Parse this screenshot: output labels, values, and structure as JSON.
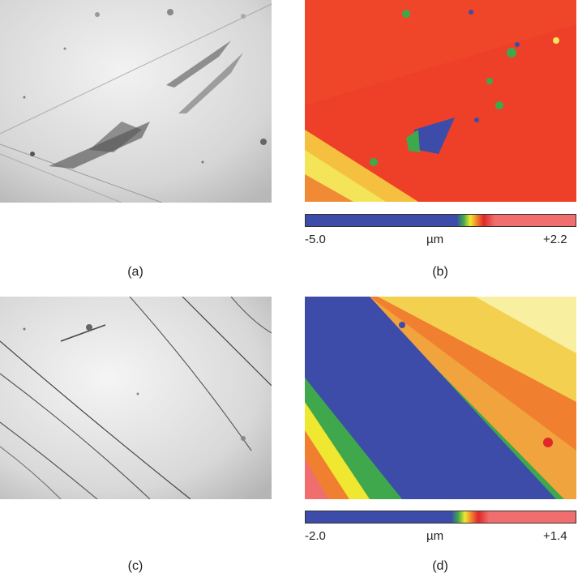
{
  "panels": [
    {
      "id": "a",
      "caption": "(a)",
      "kind": "optical micrograph (grayscale)"
    },
    {
      "id": "b",
      "caption": "(b)",
      "kind": "height map (false color)"
    },
    {
      "id": "c",
      "caption": "(c)",
      "kind": "optical micrograph (grayscale)"
    },
    {
      "id": "d",
      "caption": "(d)",
      "kind": "height map (false color)"
    }
  ],
  "colorbars": [
    {
      "panel": "b",
      "min_label": "-5.0",
      "unit": "µm",
      "max_label": "+2.2"
    },
    {
      "panel": "d",
      "min_label": "-2.0",
      "unit": "µm",
      "max_label": "+1.4"
    }
  ],
  "colors": {
    "low": "#3c4ca8",
    "mid_green": "#3fa84c",
    "mid_yellow": "#f0e830",
    "orange": "#f08030",
    "red": "#e02828",
    "high": "#f06e6e",
    "gray_light": "#ececec",
    "gray_dark": "#8a8a8a"
  }
}
